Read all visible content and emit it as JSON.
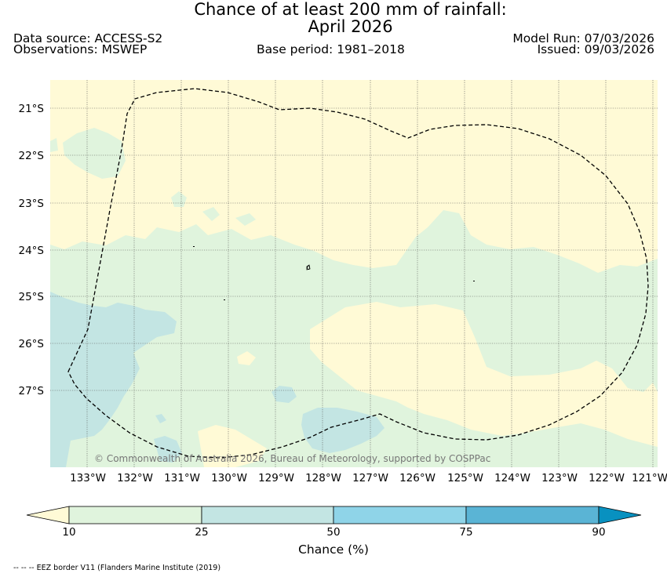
{
  "header": {
    "title_line1": "Chance of at least 200 mm of rainfall:",
    "title_line2": "April 2026",
    "data_source": "Data source: ACCESS-S2",
    "observations": "Observations: MSWEP",
    "base_period": "Base period: 1981–2018",
    "model_run": "Model Run: 07/03/2026",
    "issued": "Issued: 09/03/2026"
  },
  "map": {
    "copyright": "© Commonwealth of Australia 2026, Bureau of Meteorology, supported by COSPPac",
    "lat_labels": [
      "21°S",
      "22°S",
      "23°S",
      "24°S",
      "25°S",
      "26°S",
      "27°S"
    ],
    "lon_labels": [
      "133°W",
      "132°W",
      "131°W",
      "130°W",
      "129°W",
      "128°W",
      "127°W",
      "126°W",
      "125°W",
      "124°W",
      "123°W",
      "122°W",
      "121°W"
    ],
    "island_label": "0",
    "colors": {
      "below_10": "#fffad6",
      "c10_25": "#e0f4dd",
      "c25_50": "#c3e5e3",
      "c50_75": "#8fd4e8",
      "c75_90": "#5ab4d5",
      "above_90": "#0891c0"
    }
  },
  "colorbar": {
    "ticks": [
      "10",
      "25",
      "50",
      "75",
      "90"
    ],
    "label": "Chance (%)"
  },
  "footnote": "-- -- -- EEZ border V11 (Flanders Marine Institute (2019)"
}
